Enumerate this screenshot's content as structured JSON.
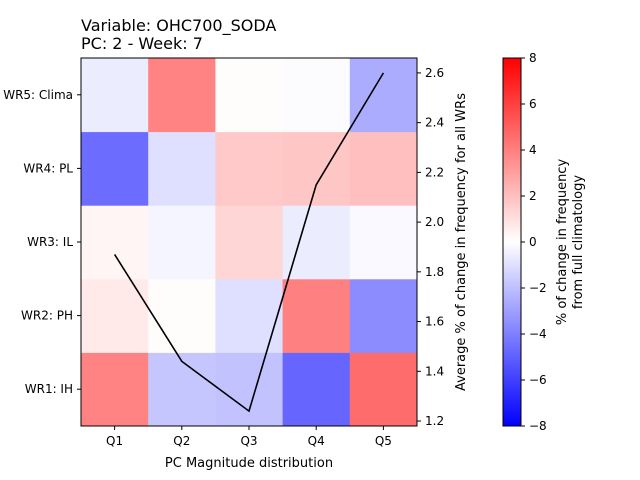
{
  "chart_data": {
    "type": "heatmap",
    "title_lines": [
      "Variable: OHC700_SODA",
      "PC: 2 - Week: 7"
    ],
    "xlabel": "PC Magnitude distribution",
    "ylabel_right": "Average % of change in frequency for all WRs",
    "colorbar_label_lines": [
      "% of change in frequency",
      "from full climatology"
    ],
    "x_categories": [
      "Q1",
      "Q2",
      "Q3",
      "Q4",
      "Q5"
    ],
    "y_categories": [
      "WR1: IH",
      "WR2: PH",
      "WR3: IL",
      "WR4: PL",
      "WR5: Clima"
    ],
    "values": [
      [
        3.9,
        -1.8,
        -1.9,
        -4.8,
        4.6
      ],
      [
        0.7,
        0.1,
        -1.0,
        4.0,
        -3.6
      ],
      [
        0.3,
        -0.3,
        1.3,
        -0.6,
        -0.2
      ],
      [
        -4.6,
        -1.0,
        1.7,
        1.8,
        2.0
      ],
      [
        -0.6,
        3.9,
        0.1,
        -0.1,
        -2.6
      ]
    ],
    "color_range": [
      -8,
      8
    ],
    "colormap": "bwr",
    "colormap_colors": {
      "low": "#0000ff",
      "mid": "#ffffff",
      "high": "#ff0000"
    },
    "colorbar_ticks": [
      "-8",
      "-6",
      "-4",
      "-2",
      "0",
      "2",
      "4",
      "6",
      "8"
    ],
    "line": {
      "color": "#000000",
      "x": [
        "Q1",
        "Q2",
        "Q3",
        "Q4",
        "Q5"
      ],
      "y": [
        1.87,
        1.44,
        1.24,
        2.15,
        2.6
      ]
    },
    "right_axis_range": [
      1.18,
      2.66
    ],
    "right_axis_ticks": [
      "1.2",
      "1.4",
      "1.6",
      "1.8",
      "2.0",
      "2.2",
      "2.4",
      "2.6"
    ]
  }
}
